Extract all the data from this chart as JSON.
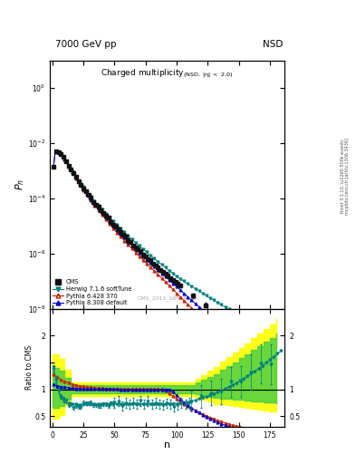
{
  "title_top": "7000 GeV pp",
  "title_right": "NSD",
  "plot_title": "Charged multiplicity",
  "plot_subtitle": "(NSD, |\\u03b7| < 2.0)",
  "ylabel_main": "P_n",
  "ylabel_ratio": "Ratio to CMS",
  "xlabel": "n",
  "watermark": "CMS_2011_S8884919",
  "right_label": "Rivet 3.1.10, \\u2265 500k events",
  "right_label2": "mcplots.cern.ch [arXiv:1306.3436]",
  "ylim_main": [
    1e-08,
    10
  ],
  "ylim_ratio": [
    0.3,
    2.5
  ],
  "xlim": [
    -2,
    187
  ],
  "colors": {
    "cms": "#111111",
    "herwig": "#008080",
    "pythia6": "#cc2200",
    "pythia8": "#0000cc"
  },
  "band_yellow": "#ffff00",
  "band_green": "#44cc44",
  "legend_labels": [
    "CMS",
    "Herwig 7.1.6 softTune",
    "Pythia 6.428 370",
    "Pythia 8.308 default"
  ]
}
